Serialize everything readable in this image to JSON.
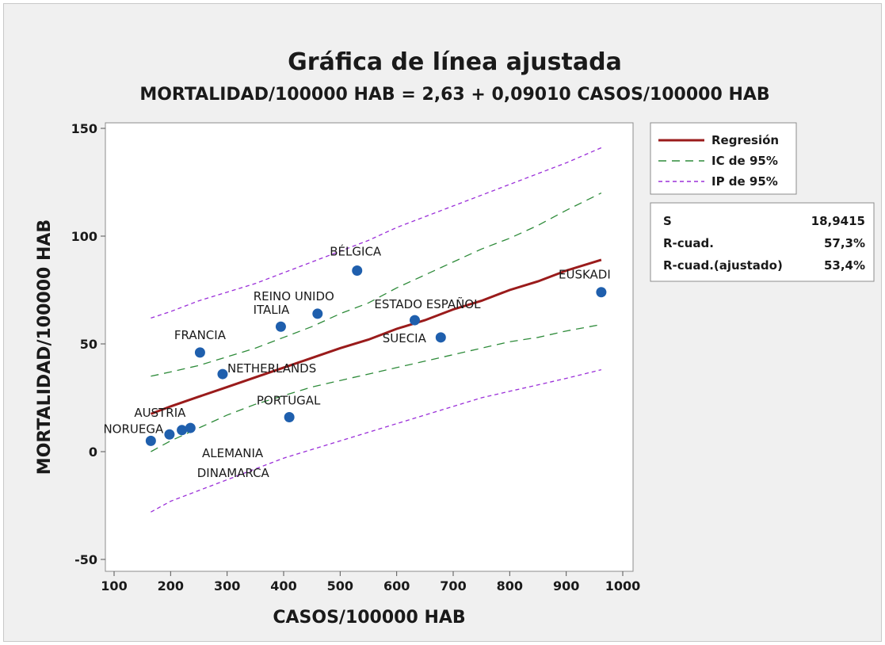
{
  "chart_data": {
    "type": "scatter",
    "title": "Gráfica de línea ajustada",
    "subtitle": "MORTALIDAD/100000 HAB = 2,63 + 0,09010 CASOS/100000 HAB",
    "xlabel": "CASOS/100000 HAB",
    "ylabel": "MORTALIDAD/100000 HAB",
    "xlim": [
      100,
      1000
    ],
    "ylim": [
      -50,
      150
    ],
    "xticks": [
      "100",
      "200",
      "300",
      "400",
      "500",
      "600",
      "700",
      "800",
      "900",
      "1000"
    ],
    "yticks": [
      "-50",
      "0",
      "50",
      "100",
      "150"
    ],
    "legend_position": "right",
    "points": [
      {
        "label": "NORUEGA",
        "x": 165,
        "y": 5
      },
      {
        "label": "AUSTRIA",
        "x": 198,
        "y": 8
      },
      {
        "label": "ALEMANIA",
        "x": 220,
        "y": 10
      },
      {
        "label": "DINAMARCA",
        "x": 235,
        "y": 11
      },
      {
        "label": "FRANCIA",
        "x": 252,
        "y": 46
      },
      {
        "label": "NETHERLANDS",
        "x": 292,
        "y": 36
      },
      {
        "label": "ITALIA",
        "x": 395,
        "y": 58
      },
      {
        "label": "PORTUGAL",
        "x": 410,
        "y": 16
      },
      {
        "label": "REINO UNIDO",
        "x": 460,
        "y": 64
      },
      {
        "label": "BÉLGICA",
        "x": 530,
        "y": 84
      },
      {
        "label": "ESTADO ESPAÑOL",
        "x": 632,
        "y": 61
      },
      {
        "label": "SUECIA",
        "x": 678,
        "y": 53
      },
      {
        "label": "EUSKADI",
        "x": 962,
        "y": 74
      }
    ],
    "series": [
      {
        "name": "Regresión",
        "x": [
          165,
          200,
          250,
          300,
          350,
          400,
          450,
          500,
          550,
          600,
          650,
          700,
          750,
          800,
          850,
          900,
          962
        ],
        "y": [
          17.5,
          21,
          25.5,
          30,
          34.5,
          39,
          43.5,
          48,
          52,
          57,
          61,
          66,
          70,
          75,
          79,
          84,
          89
        ]
      },
      {
        "name": "IC de 95%",
        "x": [
          165,
          200,
          250,
          300,
          350,
          400,
          450,
          500,
          550,
          600,
          650,
          700,
          750,
          800,
          850,
          900,
          962
        ],
        "y": [
          35,
          37,
          40,
          44,
          48,
          53,
          58,
          64,
          69,
          76,
          82,
          88,
          94,
          99,
          105,
          112,
          120
        ]
      },
      {
        "name": "IC de 95% (inferior)",
        "x": [
          165,
          200,
          250,
          300,
          350,
          400,
          450,
          500,
          550,
          600,
          650,
          700,
          750,
          800,
          850,
          900,
          962
        ],
        "y": [
          0,
          5,
          11,
          17,
          22,
          26,
          30,
          33,
          36,
          39,
          42,
          45,
          48,
          51,
          53,
          56,
          59
        ]
      },
      {
        "name": "IP de 95%",
        "x": [
          165,
          200,
          250,
          300,
          350,
          400,
          450,
          500,
          550,
          600,
          650,
          700,
          750,
          800,
          850,
          900,
          962
        ],
        "y": [
          62,
          65,
          70,
          74,
          78,
          83,
          88,
          93,
          98,
          104,
          109,
          114,
          119,
          124,
          129,
          134,
          141
        ]
      },
      {
        "name": "IP de 95% (inferior)",
        "x": [
          165,
          200,
          250,
          300,
          350,
          400,
          450,
          500,
          550,
          600,
          650,
          700,
          750,
          800,
          850,
          900,
          962
        ],
        "y": [
          -28,
          -23,
          -18,
          -13,
          -8,
          -3,
          1,
          5,
          9,
          13,
          17,
          21,
          25,
          28,
          31,
          34,
          38
        ]
      }
    ],
    "colors": {
      "regression": "#9a1b1b",
      "ci": "#2e8b3a",
      "pi": "#9b30d9",
      "points": "#1f5fad"
    }
  },
  "legend": [
    {
      "label": "Regresión"
    },
    {
      "label": "IC de 95%"
    },
    {
      "label": "IP de 95%"
    }
  ],
  "stats": [
    {
      "name": "S",
      "value": "18,9415"
    },
    {
      "name": "R-cuad.",
      "value": "57,3%"
    },
    {
      "name": "R-cuad.(ajustado)",
      "value": "53,4%"
    }
  ]
}
